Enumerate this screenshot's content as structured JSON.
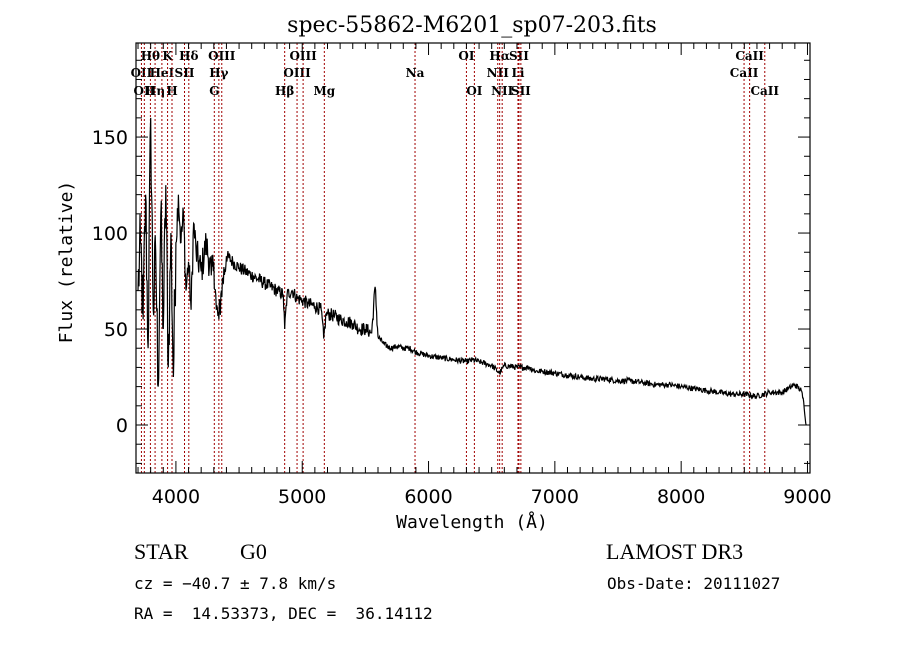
{
  "chart_data": {
    "type": "line",
    "title": "spec-55862-M6201_sp07-203.fits",
    "xlabel": "Wavelength (Å)",
    "ylabel": "Flux (relative)",
    "xlim": [
      3684,
      9020
    ],
    "ylim": [
      -25,
      199
    ],
    "xticks": [
      4000,
      5000,
      6000,
      7000,
      8000,
      9000
    ],
    "xtick_labels": [
      "4000",
      "5000",
      "6000",
      "7000",
      "8000",
      "9000"
    ],
    "yticks": [
      0,
      50,
      100,
      150
    ],
    "ytick_labels": [
      "0",
      "50",
      "100",
      "150"
    ],
    "grid": false,
    "series": [
      {
        "name": "spectrum",
        "color": "#000000",
        "anchors": [
          [
            3700,
            70
          ],
          [
            3720,
            95
          ],
          [
            3740,
            55
          ],
          [
            3760,
            120
          ],
          [
            3780,
            40
          ],
          [
            3800,
            160
          ],
          [
            3820,
            60
          ],
          [
            3840,
            90
          ],
          [
            3860,
            20
          ],
          [
            3880,
            110
          ],
          [
            3900,
            50
          ],
          [
            3920,
            125
          ],
          [
            3940,
            30
          ],
          [
            3960,
            100
          ],
          [
            3980,
            25
          ],
          [
            4000,
            95
          ],
          [
            4020,
            120
          ],
          [
            4040,
            95
          ],
          [
            4060,
            110
          ],
          [
            4080,
            70
          ],
          [
            4100,
            85
          ],
          [
            4120,
            60
          ],
          [
            4140,
            105
          ],
          [
            4160,
            90
          ],
          [
            4200,
            80
          ],
          [
            4240,
            95
          ],
          [
            4280,
            78
          ],
          [
            4300,
            85
          ],
          [
            4320,
            60
          ],
          [
            4340,
            55
          ],
          [
            4360,
            70
          ],
          [
            4400,
            88
          ],
          [
            4450,
            85
          ],
          [
            4500,
            82
          ],
          [
            4550,
            80
          ],
          [
            4600,
            78
          ],
          [
            4650,
            76
          ],
          [
            4700,
            74
          ],
          [
            4750,
            72
          ],
          [
            4800,
            70
          ],
          [
            4850,
            68
          ],
          [
            4861,
            50
          ],
          [
            4880,
            68
          ],
          [
            4920,
            70
          ],
          [
            4960,
            66
          ],
          [
            5000,
            65
          ],
          [
            5050,
            63
          ],
          [
            5100,
            62
          ],
          [
            5150,
            60
          ],
          [
            5170,
            45
          ],
          [
            5190,
            58
          ],
          [
            5250,
            57
          ],
          [
            5300,
            55
          ],
          [
            5350,
            54
          ],
          [
            5400,
            53
          ],
          [
            5450,
            50
          ],
          [
            5500,
            50
          ],
          [
            5550,
            48
          ],
          [
            5577,
            72
          ],
          [
            5600,
            46
          ],
          [
            5650,
            42
          ],
          [
            5700,
            40
          ],
          [
            5750,
            41
          ],
          [
            5800,
            40
          ],
          [
            5850,
            40
          ],
          [
            5900,
            38
          ],
          [
            5950,
            37
          ],
          [
            6000,
            36
          ],
          [
            6100,
            35
          ],
          [
            6200,
            34
          ],
          [
            6300,
            33
          ],
          [
            6350,
            34
          ],
          [
            6400,
            33
          ],
          [
            6500,
            31
          ],
          [
            6563,
            27
          ],
          [
            6600,
            31
          ],
          [
            6700,
            30
          ],
          [
            6800,
            30
          ],
          [
            6850,
            28
          ],
          [
            6900,
            28
          ],
          [
            7000,
            27
          ],
          [
            7100,
            26
          ],
          [
            7200,
            25
          ],
          [
            7300,
            24
          ],
          [
            7400,
            24
          ],
          [
            7500,
            23
          ],
          [
            7600,
            23
          ],
          [
            7700,
            22
          ],
          [
            7800,
            21
          ],
          [
            7900,
            21
          ],
          [
            8000,
            20
          ],
          [
            8100,
            19
          ],
          [
            8200,
            18
          ],
          [
            8300,
            17
          ],
          [
            8400,
            16
          ],
          [
            8500,
            16
          ],
          [
            8600,
            15
          ],
          [
            8700,
            17
          ],
          [
            8800,
            17
          ],
          [
            8850,
            19
          ],
          [
            8900,
            21
          ],
          [
            8950,
            18
          ],
          [
            8970,
            12
          ],
          [
            8990,
            0
          ]
        ]
      }
    ],
    "lines": [
      {
        "wavelength": 3727,
        "label": "OII",
        "row": 1
      },
      {
        "wavelength": 3750,
        "label": "OII",
        "row": 2
      },
      {
        "wavelength": 3798,
        "label": "Hθ",
        "row": 0
      },
      {
        "wavelength": 3835,
        "label": "Hη",
        "row": 2
      },
      {
        "wavelength": 3889,
        "label": "HeI",
        "row": 1
      },
      {
        "wavelength": 3934,
        "label": "K",
        "row": 0
      },
      {
        "wavelength": 3969,
        "label": "H",
        "row": 2
      },
      {
        "wavelength": 4068,
        "label": "SII",
        "row": 1
      },
      {
        "wavelength": 4102,
        "label": "Hδ",
        "row": 0
      },
      {
        "wavelength": 4304,
        "label": "G",
        "row": 2
      },
      {
        "wavelength": 4340,
        "label": "Hγ",
        "row": 1
      },
      {
        "wavelength": 4363,
        "label": "OIII",
        "row": 0
      },
      {
        "wavelength": 4861,
        "label": "Hβ",
        "row": 2
      },
      {
        "wavelength": 4959,
        "label": "OIII",
        "row": 1
      },
      {
        "wavelength": 5007,
        "label": "OIII",
        "row": 0
      },
      {
        "wavelength": 5175,
        "label": "Mg",
        "row": 2
      },
      {
        "wavelength": 5893,
        "label": "Na",
        "row": 1
      },
      {
        "wavelength": 6300,
        "label": "OI",
        "row": 0
      },
      {
        "wavelength": 6363,
        "label": "OI",
        "row": 2
      },
      {
        "wavelength": 6548,
        "label": "NII",
        "row": 1
      },
      {
        "wavelength": 6563,
        "label": "Hα",
        "row": 0
      },
      {
        "wavelength": 6583,
        "label": "NII",
        "row": 2
      },
      {
        "wavelength": 6708,
        "label": "Li",
        "row": 1
      },
      {
        "wavelength": 6716,
        "label": "SII",
        "row": 0
      },
      {
        "wavelength": 6731,
        "label": "SII",
        "row": 2
      },
      {
        "wavelength": 8498,
        "label": "CaII",
        "row": 1
      },
      {
        "wavelength": 8542,
        "label": "CaII",
        "row": 0
      },
      {
        "wavelength": 8662,
        "label": "CaII",
        "row": 2
      }
    ],
    "line_color": "#a00000"
  },
  "info": {
    "object_class": "STAR",
    "subclass": "G0",
    "survey": "LAMOST DR3",
    "redshift": "cz = −40.7 ± 7.8 km/s",
    "obs_date": "Obs-Date: 20111027",
    "coords": "RA =  14.53373, DEC =  36.14112"
  }
}
